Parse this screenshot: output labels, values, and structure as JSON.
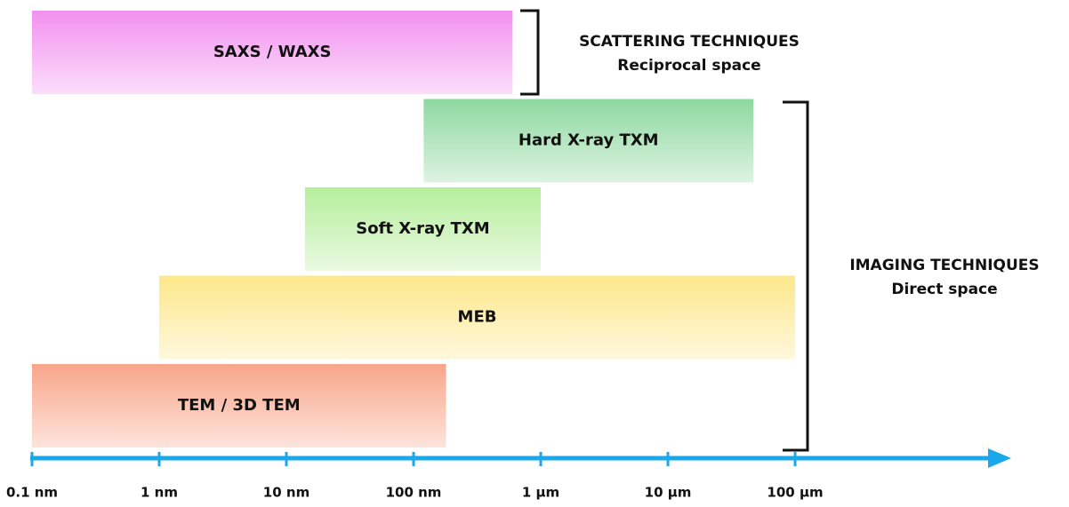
{
  "chart_data": {
    "type": "range_bar",
    "bars": [
      {
        "label": "SAXS / WAXS",
        "start": 0.1,
        "end": 600,
        "color": "#f290ef"
      },
      {
        "label": "Hard X-ray TXM",
        "start": 120,
        "end": 47000,
        "color": "#8ed8a0"
      },
      {
        "label": "Soft X-ray TXM",
        "start": 14,
        "end": 1000,
        "color": "#b6ee9c"
      },
      {
        "label": "MEB",
        "start": 1,
        "end": 100000,
        "color": "#fde78a"
      },
      {
        "label": "TEM / 3D TEM",
        "start": 0.1,
        "end": 180,
        "color": "#f8a58a"
      }
    ],
    "xscale": "log",
    "xlim": [
      0.1,
      5000000
    ],
    "xticks": [
      {
        "value": 0.1,
        "label": "0.1 nm"
      },
      {
        "value": 1,
        "label": "1 nm"
      },
      {
        "value": 10,
        "label": "10 nm"
      },
      {
        "value": 100,
        "label": "100 nm"
      },
      {
        "value": 1000,
        "label": "1 µm"
      },
      {
        "value": 10000,
        "label": "10 µm"
      },
      {
        "value": 100000,
        "label": "100 µm"
      }
    ],
    "axis_color": "#1aa7ec",
    "groups": [
      {
        "title": "SCATTERING TECHNIQUES",
        "subtitle": "Reciprocal space"
      },
      {
        "title": "IMAGING TECHNIQUES",
        "subtitle": "Direct space"
      }
    ]
  }
}
